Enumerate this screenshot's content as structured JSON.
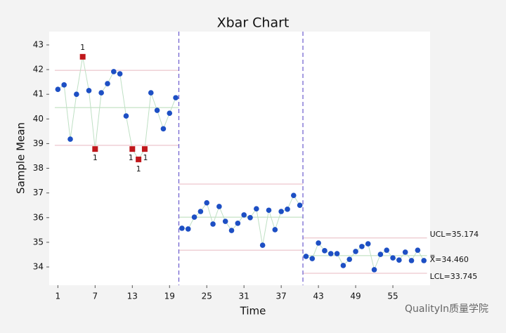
{
  "chart_data": {
    "type": "control",
    "title": "Xbar Chart",
    "x_label": "Time",
    "y_label": "Sample Mean",
    "watermark": "QualityIn质量学院",
    "xlim": [
      -0.4,
      61
    ],
    "ylim": [
      33.26,
      43.54
    ],
    "xticks": [
      1,
      7,
      13,
      19,
      25,
      31,
      37,
      43,
      49,
      55
    ],
    "yticks": [
      34,
      35,
      36,
      37,
      38,
      39,
      40,
      41,
      42,
      43
    ],
    "point_color": "#1d4fc4",
    "flag_color": "#c0171b",
    "line_color": "#bfe0c4",
    "series": [
      {
        "x": [
          1,
          2,
          3,
          4,
          5,
          6,
          7,
          8,
          9,
          10,
          11,
          12,
          13,
          14,
          15,
          16,
          17,
          18,
          19,
          20
        ],
        "values": [
          41.2,
          41.38,
          39.18,
          41.0,
          42.52,
          41.15,
          38.78,
          41.06,
          41.43,
          41.92,
          41.83,
          40.12,
          38.78,
          38.36,
          38.78,
          41.06,
          40.35,
          39.6,
          40.23,
          40.86
        ],
        "flag_labels": [
          null,
          null,
          null,
          null,
          "1",
          null,
          "1",
          null,
          null,
          null,
          null,
          null,
          "1",
          "1",
          "1",
          null,
          null,
          null,
          null,
          null
        ],
        "ucl": 41.97,
        "center": 40.46,
        "lcl": 38.93
      },
      {
        "x": [
          21,
          22,
          23,
          24,
          25,
          26,
          27,
          28,
          29,
          30,
          31,
          32,
          33,
          34,
          35,
          36,
          37,
          38,
          39,
          40
        ],
        "values": [
          35.57,
          35.54,
          36.02,
          36.25,
          36.6,
          35.74,
          36.45,
          35.85,
          35.48,
          35.77,
          36.11,
          36.0,
          36.36,
          34.88,
          36.3,
          35.51,
          36.25,
          36.34,
          36.9,
          36.5
        ],
        "ucl": 37.36,
        "center": 36.02,
        "lcl": 34.68
      },
      {
        "x": [
          41,
          42,
          43,
          44,
          45,
          46,
          47,
          48,
          49,
          50,
          51,
          52,
          53,
          54,
          55,
          56,
          57,
          58,
          59,
          60
        ],
        "values": [
          34.43,
          34.34,
          34.97,
          34.66,
          34.54,
          34.54,
          34.06,
          34.31,
          34.63,
          34.83,
          34.94,
          33.89,
          34.51,
          34.68,
          34.37,
          34.28,
          34.6,
          34.26,
          34.68,
          34.26
        ],
        "ucl": 35.174,
        "center": 34.46,
        "lcl": 33.745,
        "limit_labels": {
          "ucl": "UCL=35.174",
          "center": "X̿=34.460",
          "lcl": "LCL=33.745"
        }
      }
    ]
  }
}
